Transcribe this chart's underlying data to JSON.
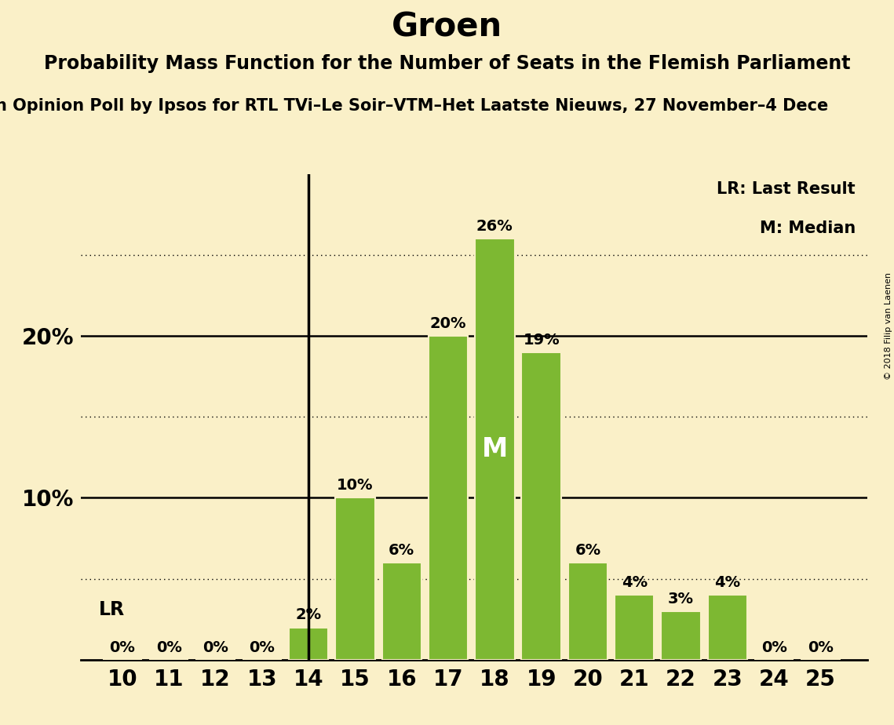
{
  "title": "Groen",
  "subtitle": "Probability Mass Function for the Number of Seats in the Flemish Parliament",
  "source_line": "n Opinion Poll by Ipsos for RTL TVi–Le Soir–VTM–Het Laatste Nieuws, 27 November–4 Dece",
  "copyright": "© 2018 Filip van Laenen",
  "seats": [
    10,
    11,
    12,
    13,
    14,
    15,
    16,
    17,
    18,
    19,
    20,
    21,
    22,
    23,
    24,
    25
  ],
  "probabilities": [
    0,
    0,
    0,
    0,
    2,
    10,
    6,
    20,
    26,
    19,
    6,
    4,
    3,
    4,
    0,
    0
  ],
  "bar_color": "#7db832",
  "bg_color": "#faf0c8",
  "median": 18,
  "last_result": 14,
  "dotted_line_levels": [
    5,
    15,
    25
  ],
  "solid_line_levels": [
    10,
    20
  ],
  "title_fontsize": 30,
  "subtitle_fontsize": 17,
  "source_fontsize": 15,
  "bar_label_fontsize": 14,
  "axis_tick_fontsize": 20,
  "ytick_fontsize": 20,
  "legend_fontsize": 15,
  "lr_label_fontsize": 17,
  "median_label_color": "#ffffff",
  "median_fontsize": 24
}
